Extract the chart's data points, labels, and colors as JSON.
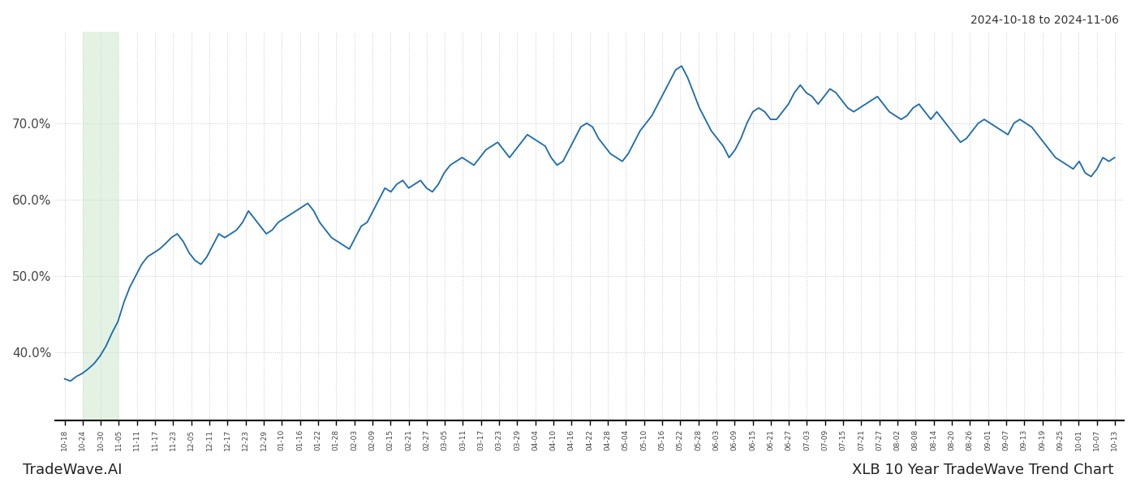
{
  "title_top_right": "2024-10-18 to 2024-11-06",
  "title_bottom_left": "TradeWave.AI",
  "title_bottom_right": "XLB 10 Year TradeWave Trend Chart",
  "line_color": "#1a6aaf",
  "line_width": 1.3,
  "shade_color": "#c8e6c9",
  "shade_alpha": 0.5,
  "shade_xstart": "10-24",
  "shade_xend": "11-05",
  "background_color": "#ffffff",
  "grid_color": "#c8c8c8",
  "ylim": [
    31,
    82
  ],
  "yticks": [
    40.0,
    50.0,
    60.0,
    70.0
  ],
  "x_tick_labels": [
    "10-18",
    "10-24",
    "10-30",
    "11-05",
    "11-11",
    "11-17",
    "11-23",
    "12-05",
    "12-11",
    "12-17",
    "12-23",
    "12-29",
    "01-10",
    "01-16",
    "01-22",
    "01-28",
    "02-03",
    "02-09",
    "02-15",
    "02-21",
    "02-27",
    "03-05",
    "03-11",
    "03-17",
    "03-23",
    "03-29",
    "04-04",
    "04-10",
    "04-16",
    "04-22",
    "04-28",
    "05-04",
    "05-10",
    "05-16",
    "05-22",
    "05-28",
    "06-03",
    "06-09",
    "06-15",
    "06-21",
    "06-27",
    "07-03",
    "07-09",
    "07-15",
    "07-21",
    "07-27",
    "08-02",
    "08-08",
    "08-14",
    "08-20",
    "08-26",
    "09-01",
    "09-07",
    "09-13",
    "09-19",
    "09-25",
    "10-01",
    "10-07",
    "10-13"
  ],
  "values": [
    36.5,
    36.2,
    36.8,
    37.2,
    37.8,
    38.5,
    39.5,
    40.8,
    42.5,
    44.0,
    46.5,
    48.5,
    50.0,
    51.5,
    52.5,
    53.0,
    53.5,
    54.2,
    55.0,
    55.5,
    54.5,
    53.0,
    52.0,
    51.5,
    52.5,
    54.0,
    55.5,
    55.0,
    55.5,
    56.0,
    57.0,
    58.5,
    57.5,
    56.5,
    55.5,
    56.0,
    57.0,
    57.5,
    58.0,
    58.5,
    59.0,
    59.5,
    58.5,
    57.0,
    56.0,
    55.0,
    54.5,
    54.0,
    53.5,
    55.0,
    56.5,
    57.0,
    58.5,
    60.0,
    61.5,
    61.0,
    62.0,
    62.5,
    61.5,
    62.0,
    62.5,
    61.5,
    61.0,
    62.0,
    63.5,
    64.5,
    65.0,
    65.5,
    65.0,
    64.5,
    65.5,
    66.5,
    67.0,
    67.5,
    66.5,
    65.5,
    66.5,
    67.5,
    68.5,
    68.0,
    67.5,
    67.0,
    65.5,
    64.5,
    65.0,
    66.5,
    68.0,
    69.5,
    70.0,
    69.5,
    68.0,
    67.0,
    66.0,
    65.5,
    65.0,
    66.0,
    67.5,
    69.0,
    70.0,
    71.0,
    72.5,
    74.0,
    75.5,
    77.0,
    77.5,
    76.0,
    74.0,
    72.0,
    70.5,
    69.0,
    68.0,
    67.0,
    65.5,
    66.5,
    68.0,
    70.0,
    71.5,
    72.0,
    71.5,
    70.5,
    70.5,
    71.5,
    72.5,
    74.0,
    75.0,
    74.0,
    73.5,
    72.5,
    73.5,
    74.5,
    74.0,
    73.0,
    72.0,
    71.5,
    72.0,
    72.5,
    73.0,
    73.5,
    72.5,
    71.5,
    71.0,
    70.5,
    71.0,
    72.0,
    72.5,
    71.5,
    70.5,
    71.5,
    70.5,
    69.5,
    68.5,
    67.5,
    68.0,
    69.0,
    70.0,
    70.5,
    70.0,
    69.5,
    69.0,
    68.5,
    70.0,
    70.5,
    70.0,
    69.5,
    68.5,
    67.5,
    66.5,
    65.5,
    65.0,
    64.5,
    64.0,
    65.0,
    63.5,
    63.0,
    64.0,
    65.5,
    65.0,
    65.5
  ]
}
